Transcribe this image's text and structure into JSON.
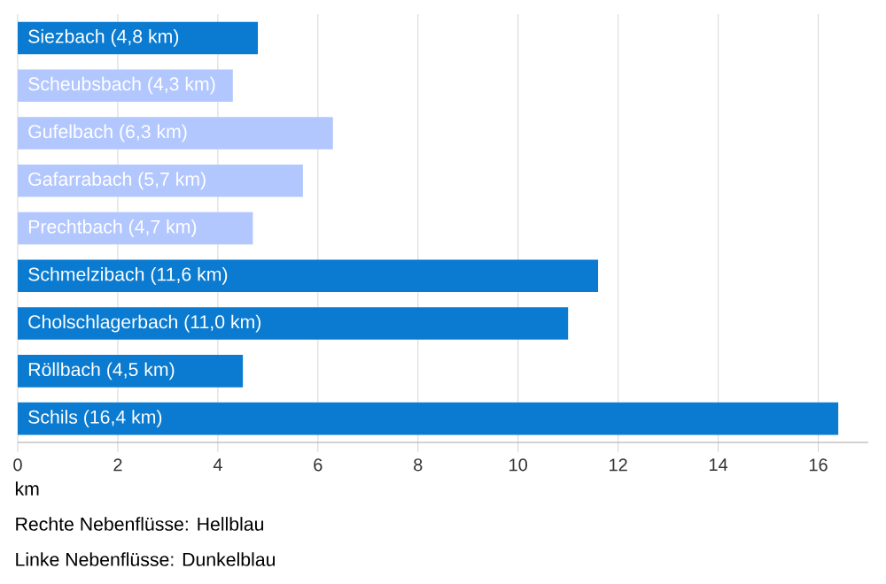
{
  "chart_data": {
    "type": "bar",
    "orientation": "horizontal",
    "categories": [
      "Siezbach (4,8 km)",
      "Scheubsbach (4,3 km)",
      "Gufelbach (6,3 km)",
      "Gafarrabach (5,7 km)",
      "Prechtbach (4,7 km)",
      "Schmelzibach (11,6 km)",
      "Cholschlagerbach (11,0 km)",
      "Röllbach (4,5 km)",
      "Schils (16,4 km)"
    ],
    "values": [
      4.8,
      4.3,
      6.3,
      5.7,
      4.7,
      11.6,
      11.0,
      4.5,
      16.4
    ],
    "colors": [
      "#0a7bd0",
      "#b3c7ff",
      "#b3c7ff",
      "#b3c7ff",
      "#b3c7ff",
      "#0a7bd0",
      "#0a7bd0",
      "#0a7bd0",
      "#0a7bd0"
    ],
    "xlim": [
      0,
      17
    ],
    "xticks": [
      0,
      2,
      4,
      6,
      8,
      10,
      12,
      14,
      16
    ],
    "xlabel": "km",
    "grid": "x",
    "annotations": [
      "Rechte Nebenflüsse: Hellblau",
      "Linke Nebenflüsse: Dunkelblau"
    ]
  }
}
